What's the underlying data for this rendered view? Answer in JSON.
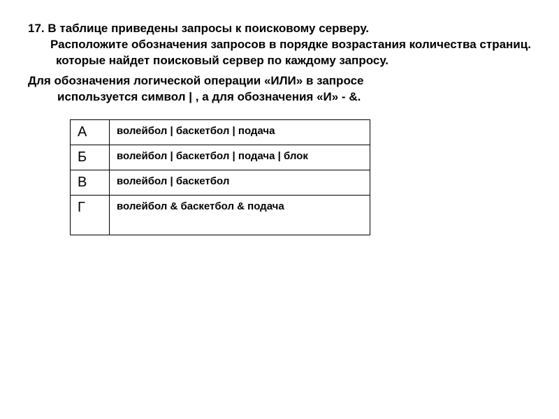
{
  "question": {
    "number": "17.",
    "line1": "В таблице приведены запросы к поисковому серверу.",
    "line2": "Расположите обозначения запросов в порядке возрастания количества страниц.",
    "line3": "которые найдет поисковый сервер по каждому запросу.",
    "subline1": "Для обозначения логической операции «ИЛИ» в запросе",
    "subline2": "используется символ | , а для обозначения «И» - &."
  },
  "table": {
    "rows": [
      {
        "label": "А",
        "query": "волейбол | баскетбол | подача"
      },
      {
        "label": "Б",
        "query": "волейбол | баскетбол | подача | блок"
      },
      {
        "label": "В",
        "query": "волейбол | баскетбол"
      },
      {
        "label": "Г",
        "query": "волейбол & баскетбол & подача"
      }
    ],
    "border_color": "#000000",
    "label_fontsize": 20,
    "query_fontsize": 15
  },
  "colors": {
    "background": "#ffffff",
    "text": "#000000"
  }
}
